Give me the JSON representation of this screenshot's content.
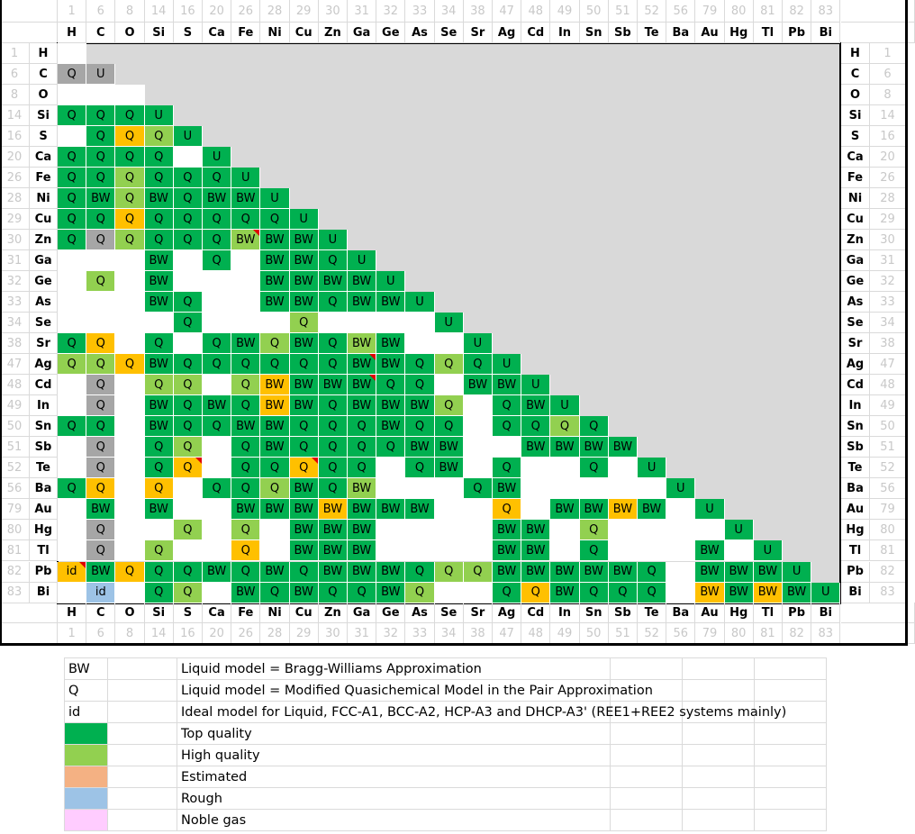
{
  "elements": [
    {
      "sym": "H",
      "z": "1"
    },
    {
      "sym": "C",
      "z": "6"
    },
    {
      "sym": "O",
      "z": "8"
    },
    {
      "sym": "Si",
      "z": "14"
    },
    {
      "sym": "S",
      "z": "16"
    },
    {
      "sym": "Ca",
      "z": "20"
    },
    {
      "sym": "Fe",
      "z": "26"
    },
    {
      "sym": "Ni",
      "z": "28"
    },
    {
      "sym": "Cu",
      "z": "29"
    },
    {
      "sym": "Zn",
      "z": "30"
    },
    {
      "sym": "Ga",
      "z": "31"
    },
    {
      "sym": "Ge",
      "z": "32"
    },
    {
      "sym": "As",
      "z": "33"
    },
    {
      "sym": "Se",
      "z": "34"
    },
    {
      "sym": "Sr",
      "z": "38"
    },
    {
      "sym": "Ag",
      "z": "47"
    },
    {
      "sym": "Cd",
      "z": "48"
    },
    {
      "sym": "In",
      "z": "49"
    },
    {
      "sym": "Sn",
      "z": "50"
    },
    {
      "sym": "Sb",
      "z": "51"
    },
    {
      "sym": "Te",
      "z": "52"
    },
    {
      "sym": "Ba",
      "z": "56"
    },
    {
      "sym": "Au",
      "z": "79"
    },
    {
      "sym": "Hg",
      "z": "80"
    },
    {
      "sym": "Tl",
      "z": "81"
    },
    {
      "sym": "Pb",
      "z": "82"
    },
    {
      "sym": "Bi",
      "z": "83"
    }
  ],
  "colors": {
    "top_quality": "#00b050",
    "high_quality": "#92d050",
    "estimated": "#ffc000",
    "rough": "#9dc3e6",
    "grey": "#a6a6a6",
    "legend_estimated": "#f4b183",
    "noble_gas": "#ffccff",
    "empty": "#ffffff"
  },
  "matrix_rows": [
    "",
    "gQ gU",
    "",
    "GQ GQ GQ GU",
    "_ GQ YQ LQ GU",
    "GQ GQ GQ GQ _ GU",
    "GQ GQ LQ GQ GQ GQ GU",
    "GQ GBW LQ GBW GQ GBW GBW GU",
    "GQ GQ YQ GQ GQ GQ GQ GQ GU",
    "GQ gQ LQ GQ GQ GQ LBW* GBW GBW GU",
    "_ _ _ GBW _ GQ _ GBW GBW GQ GU",
    "_ LQ _ GBW _ _ _ GBW GBW GBW GBW GU",
    "_ _ _ GBW GQ _ _ GBW GBW GQ GBW GBW GU",
    "_ _ _ _ GQ _ _ _ LQ _ _ _ _ GU",
    "GQ YQ _ GQ _ GQ GBW LQ GBW GQ LBW GBW _ _ GU",
    "LQ LQ YQ GBW GQ GQ GQ GQ GQ GQ GBW* GBW GQ LQ GQ GU",
    "_ gQ _ LQ LQ _ LQ YBW GBW GBW GBW* GQ GQ _ GBW GBW GU",
    "_ gQ _ GBW GQ GBW GQ YBW GBW GQ GBW GBW GBW LQ _ GQ GBW GU",
    "GQ GQ _ GBW GQ GQ GBW GBW GQ GQ GQ GBW GQ GQ _ GQ GQ LQ GQ GU",
    "_ gQ _ GQ LQ _ GQ GBW GQ GQ GQ GQ GBW GBW _ _ GBW GBW GBW GBW GU",
    "_ gQ _ GQ YQ* _ GQ GQ YQ* GQ GQ _ GQ GBW _ GQ _ _ GQ _ GU",
    "GQ YQ _ YQ _ GQ GQ LQ GBW GQ LBW _ _ _ GQ GBW _ _ _ _ _ GU",
    "_ GBW _ GBW _ _ GBW GBW GBW YBW GBW GBW GBW _ _ YQ _ GBW GBW YBW GBW _ GU",
    "_ gQ _ _ LQ _ LQ _ GBW GBW GBW _ _ _ _ GBW GBW _ LQ _ _ _ _ GU",
    "_ gQ _ LQ _ _ YQ _ GBW GBW GBW _ _ _ _ GBW GBW _ GQ _ _ _ GBW _ GU",
    "Yid* GBW YQ GQ GQ GBW GQ GBW GQ GBW GBW GBW GQ LQ LQ GBW GBW GBW GBW GBW GQ _ GBW GBW GBW GU",
    "_ Bid _ GQ LQ _ GBW GQ GBW GQ GQ GBW LQ _ _ GQ YQ GBW GQ GQ GQ _ YBW GBW YBW GBW GU"
  ],
  "legend": [
    {
      "code": "BW",
      "text": "Liquid model = Bragg-Williams Approximation",
      "swatch": ""
    },
    {
      "code": "Q",
      "text": "Liquid model = Modified Quasichemical Model in the Pair Approximation",
      "swatch": ""
    },
    {
      "code": "id",
      "text": "Ideal model for Liquid, FCC-A1, BCC-A2, HCP-A3 and DHCP-A3' (REE1+REE2 systems mainly)",
      "swatch": ""
    },
    {
      "code": "",
      "text": "Top quality",
      "swatch": "#00b050"
    },
    {
      "code": "",
      "text": "High quality",
      "swatch": "#92d050"
    },
    {
      "code": "",
      "text": "Estimated",
      "swatch": "#f4b183"
    },
    {
      "code": "",
      "text": "Rough",
      "swatch": "#9dc3e6"
    },
    {
      "code": "",
      "text": "Noble gas",
      "swatch": "#ffccff"
    }
  ]
}
